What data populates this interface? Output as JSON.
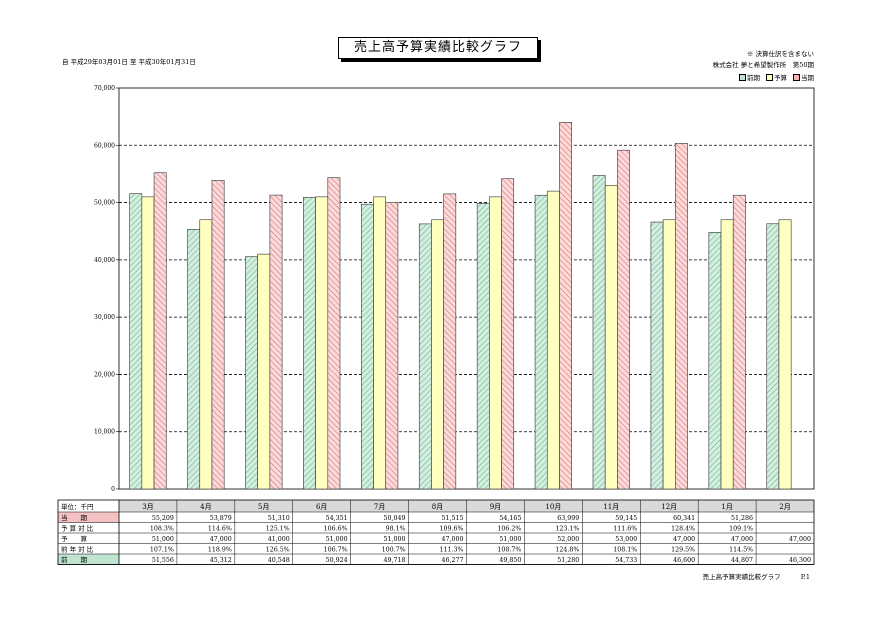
{
  "header": {
    "title": "売上高予算実績比較グラフ",
    "period": "自 平成29年03月01日 至 平成30年01月31日",
    "note": "※ 決算仕訳を含まない",
    "company": "株式会社 夢と希望製作所　第50期"
  },
  "legend": [
    {
      "name": "前期",
      "color": "#bfe4cf"
    },
    {
      "name": "予算",
      "color": "#ffffbf"
    },
    {
      "name": "当期",
      "color": "#f4b3b6"
    }
  ],
  "chart_data": {
    "type": "bar",
    "categories": [
      "3月",
      "4月",
      "5月",
      "6月",
      "7月",
      "8月",
      "9月",
      "10月",
      "11月",
      "12月",
      "1月",
      "2月"
    ],
    "ylim": [
      0,
      70000
    ],
    "yticks": [
      "0",
      "10,000",
      "20,000",
      "30,000",
      "40,000",
      "50,000",
      "60,000",
      "70,000"
    ],
    "series": [
      {
        "name": "前期",
        "values": [
          51556,
          45312,
          40548,
          50924,
          49718,
          46277,
          49850,
          51280,
          54733,
          46600,
          44807,
          46300
        ]
      },
      {
        "name": "予算",
        "values": [
          51000,
          47000,
          41000,
          51000,
          51000,
          47000,
          51000,
          52000,
          53000,
          47000,
          47000,
          47000
        ]
      },
      {
        "name": "当期",
        "values": [
          55209,
          53879,
          51310,
          54351,
          50049,
          51515,
          54165,
          63999,
          59145,
          60341,
          51286,
          null
        ]
      }
    ]
  },
  "table": {
    "unit_label": "単位：千円",
    "rows": [
      {
        "label": "当　　期",
        "cells": [
          "55,209",
          "53,879",
          "51,310",
          "54,351",
          "50,049",
          "51,515",
          "54,165",
          "63,999",
          "59,145",
          "60,341",
          "51,286",
          ""
        ]
      },
      {
        "label": "予 算 対 比",
        "cells": [
          "108.3%",
          "114.6%",
          "125.1%",
          "106.6%",
          "98.1%",
          "109.6%",
          "106.2%",
          "123.1%",
          "111.6%",
          "128.4%",
          "109.1%",
          ""
        ]
      },
      {
        "label": "予　　算",
        "cells": [
          "51,000",
          "47,000",
          "41,000",
          "51,000",
          "51,000",
          "47,000",
          "51,000",
          "52,000",
          "53,000",
          "47,000",
          "47,000",
          "47,000"
        ]
      },
      {
        "label": "前 年 対 比",
        "cells": [
          "107.1%",
          "118.9%",
          "126.5%",
          "106.7%",
          "100.7%",
          "111.3%",
          "108.7%",
          "124.8%",
          "108.1%",
          "129.5%",
          "114.5%",
          ""
        ]
      },
      {
        "label": "前　　期",
        "cells": [
          "51,556",
          "45,312",
          "40,548",
          "50,924",
          "49,718",
          "46,277",
          "49,850",
          "51,280",
          "54,733",
          "46,600",
          "44,807",
          "46,300"
        ]
      }
    ]
  },
  "footer": {
    "label": "売上高予算実績比較グラフ",
    "page": "P.1"
  }
}
